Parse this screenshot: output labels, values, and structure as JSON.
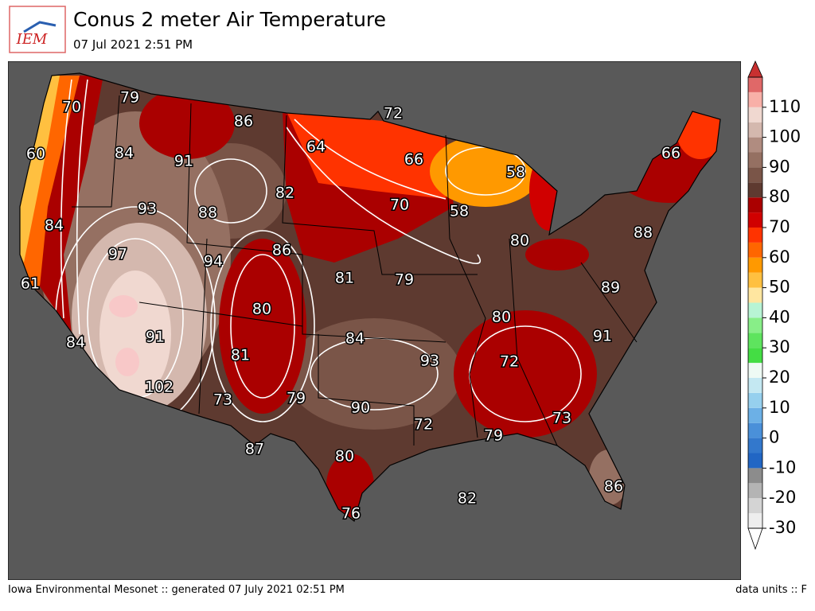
{
  "header": {
    "logo": "IEM",
    "title": "Conus 2 meter Air Temperature",
    "subtitle": "07 Jul 2021 2:51 PM"
  },
  "map": {
    "labels": [
      70,
      79,
      86,
      72,
      60,
      84,
      91,
      64,
      66,
      66,
      58,
      93,
      88,
      82,
      70,
      58,
      84,
      97,
      94,
      86,
      80,
      88,
      61,
      81,
      79,
      89,
      80,
      80,
      84,
      91,
      84,
      91,
      81,
      93,
      72,
      102,
      73,
      79,
      90,
      72,
      73,
      79,
      87,
      80,
      86,
      82,
      76
    ]
  },
  "colorbar": {
    "lim": [
      -30,
      120
    ],
    "ticks": [
      -30,
      -20,
      -10,
      0,
      10,
      20,
      30,
      40,
      50,
      60,
      70,
      80,
      90,
      100,
      110
    ],
    "under": "#ffffff",
    "over": "#c83030",
    "colors": [
      "#eeeeee",
      "#d4d4d4",
      "#b4b4b4",
      "#8c8c8c",
      "#2166c4",
      "#3378cc",
      "#4a90d9",
      "#6cb0e6",
      "#96d0ee",
      "#c4e8f2",
      "#eefaf4",
      "#44dd44",
      "#5ee45e",
      "#88ee88",
      "#b8f4d4",
      "#ffe6a0",
      "#ffc040",
      "#ff9900",
      "#ff6600",
      "#ff3300",
      "#d00000",
      "#aa0000",
      "#5e3a30",
      "#7a5548",
      "#957062",
      "#b08c80",
      "#d4b8ae",
      "#f0d8d0",
      "#f8b0a8",
      "#e06868"
    ]
  },
  "footer": {
    "left": "Iowa Environmental Mesonet :: generated 07 July 2021 02:51 PM",
    "right": "data units :: F"
  }
}
